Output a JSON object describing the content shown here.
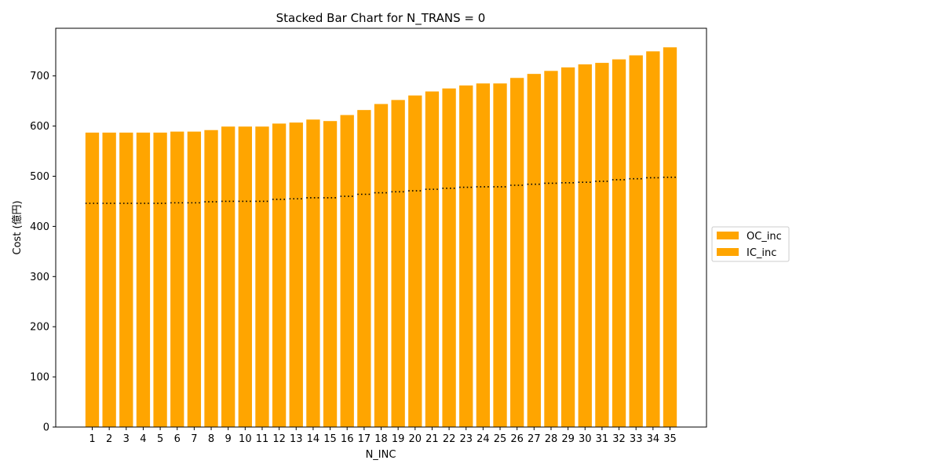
{
  "chart_data": {
    "type": "bar",
    "title": "Stacked Bar Chart for N_TRANS = 0",
    "xlabel": "N_INC",
    "ylabel": "Cost (億円)",
    "ylim": [
      0,
      795
    ],
    "yticks": [
      0,
      100,
      200,
      300,
      400,
      500,
      600,
      700
    ],
    "categories": [
      "1",
      "2",
      "3",
      "4",
      "5",
      "6",
      "7",
      "8",
      "9",
      "10",
      "11",
      "12",
      "13",
      "14",
      "15",
      "16",
      "17",
      "18",
      "19",
      "20",
      "21",
      "22",
      "23",
      "24",
      "25",
      "26",
      "27",
      "28",
      "29",
      "30",
      "31",
      "32",
      "33",
      "34",
      "35"
    ],
    "series": [
      {
        "name": "IC_inc",
        "color": "#FFA500",
        "values": [
          446,
          446,
          446,
          446,
          446,
          447,
          447,
          449,
          450,
          450,
          450,
          454,
          455,
          457,
          457,
          460,
          464,
          467,
          469,
          471,
          474,
          476,
          478,
          479,
          479,
          482,
          484,
          486,
          487,
          488,
          490,
          493,
          495,
          497,
          498
        ]
      },
      {
        "name": "OC_inc",
        "color": "#FFA500",
        "values": [
          141,
          141,
          141,
          141,
          141,
          142,
          142,
          143,
          149,
          149,
          149,
          151,
          152,
          156,
          153,
          162,
          168,
          177,
          183,
          190,
          195,
          199,
          203,
          206,
          206,
          214,
          220,
          224,
          230,
          235,
          236,
          240,
          246,
          252,
          259
        ]
      }
    ],
    "totals": [
      587,
      587,
      587,
      587,
      587,
      589,
      589,
      592,
      599,
      599,
      599,
      605,
      607,
      613,
      610,
      622,
      632,
      644,
      652,
      661,
      669,
      675,
      681,
      685,
      685,
      696,
      704,
      710,
      717,
      723,
      726,
      733,
      741,
      749,
      757
    ],
    "boundary_line_style": "dotted black",
    "grid": false,
    "legend": {
      "placement": "right-outside",
      "entries": [
        "OC_inc",
        "IC_inc"
      ]
    }
  }
}
